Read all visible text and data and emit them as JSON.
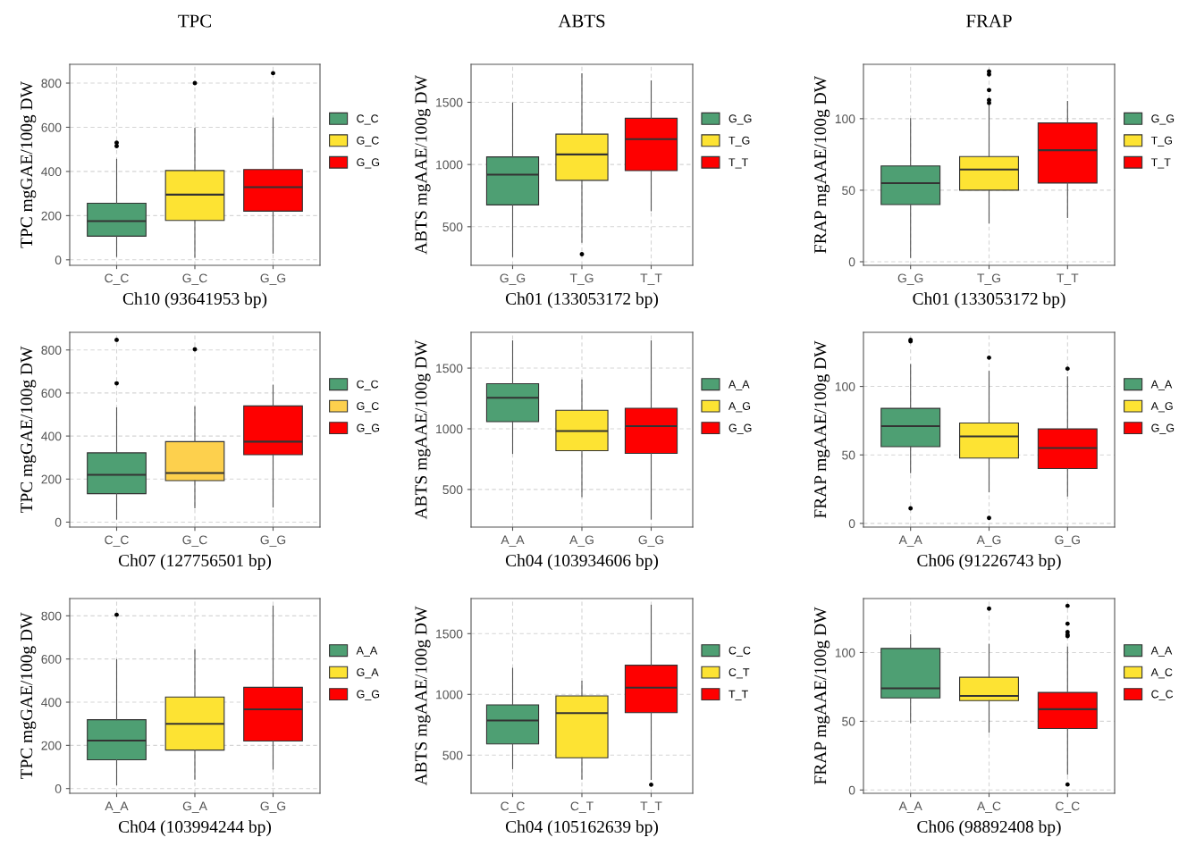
{
  "chart_data": [
    {
      "type": "box",
      "title": "TPC",
      "xlabel": "Ch10 (93641953 bp)",
      "ylabel": "TPC mgGAE/100g DW",
      "categories": [
        "C_C",
        "G_C",
        "G_G"
      ],
      "ylim": [
        -25,
        885
      ],
      "yticks": [
        0,
        200,
        400,
        600,
        800
      ],
      "grid": true,
      "legend": "right",
      "series": [
        {
          "name": "C_C",
          "color": "#4e9f73",
          "boxes": [
            {
              "low": 15,
              "q1": 107,
              "median": 175,
              "q3": 256,
              "high": 455,
              "outliers": [
                515,
                530
              ]
            },
            null,
            null
          ]
        },
        {
          "name": "G_C",
          "color": "#fde333",
          "boxes": [
            null,
            {
              "low": 12,
              "q1": 178,
              "median": 295,
              "q3": 404,
              "high": 596,
              "outliers": [
                800
              ]
            },
            null
          ]
        },
        {
          "name": "G_G",
          "color": "#fe0000",
          "boxes": [
            null,
            null,
            {
              "low": 30,
              "q1": 220,
              "median": 329,
              "q3": 409,
              "high": 642,
              "outliers": [
                845
              ]
            }
          ]
        }
      ]
    },
    {
      "type": "box",
      "title": "ABTS",
      "xlabel": "Ch01 (133053172 bp)",
      "ylabel": "ABTS mgAAE/100g DW",
      "categories": [
        "G_G",
        "T_G",
        "T_T"
      ],
      "ylim": [
        190,
        1805
      ],
      "yticks": [
        500,
        1000,
        1500
      ],
      "grid": true,
      "legend": "right",
      "series": [
        {
          "name": "G_G",
          "color": "#4e9f73",
          "boxes": [
            {
              "low": 260,
              "q1": 675,
              "median": 918,
              "q3": 1061,
              "high": 1494
            },
            null,
            null
          ]
        },
        {
          "name": "T_G",
          "color": "#fde333",
          "boxes": [
            null,
            {
              "low": 375,
              "q1": 873,
              "median": 1081,
              "q3": 1244,
              "high": 1730,
              "outliers": [
                280
              ]
            },
            null
          ]
        },
        {
          "name": "T_T",
          "color": "#fe0000",
          "boxes": [
            null,
            null,
            {
              "low": 628,
              "q1": 951,
              "median": 1204,
              "q3": 1372,
              "high": 1672
            }
          ]
        }
      ]
    },
    {
      "type": "box",
      "title": "FRAP",
      "xlabel": "Ch01 (133053172 bp)",
      "ylabel": "FRAP mgAAE/100g DW",
      "categories": [
        "G_G",
        "T_G",
        "T_T"
      ],
      "ylim": [
        -2.5,
        138
      ],
      "yticks": [
        0,
        50,
        100
      ],
      "grid": true,
      "legend": "right",
      "series": [
        {
          "name": "G_G",
          "color": "#4e9f73",
          "boxes": [
            {
              "low": 3,
              "q1": 40,
              "median": 55,
              "q3": 67,
              "high": 100
            },
            null,
            null
          ]
        },
        {
          "name": "T_G",
          "color": "#fde333",
          "boxes": [
            null,
            {
              "low": 27,
              "q1": 50,
              "median": 64.5,
              "q3": 73.5,
              "high": 109,
              "outliers": [
                111,
                113,
                120,
                131,
                133
              ]
            },
            null
          ]
        },
        {
          "name": "T_T",
          "color": "#fe0000",
          "boxes": [
            null,
            null,
            {
              "low": 31,
              "q1": 55,
              "median": 78,
              "q3": 97,
              "high": 112
            }
          ]
        }
      ]
    },
    {
      "type": "box",
      "xlabel": "Ch07 (127756501 bp)",
      "ylabel": "TPC mgGAE/100g DW",
      "categories": [
        "C_C",
        "G_C",
        "G_G"
      ],
      "ylim": [
        -23,
        882
      ],
      "yticks": [
        0,
        200,
        400,
        600,
        800
      ],
      "grid": true,
      "legend": "right",
      "series": [
        {
          "name": "C_C",
          "color": "#4e9f73",
          "boxes": [
            {
              "low": 14,
              "q1": 132,
              "median": 220,
              "q3": 322,
              "high": 531,
              "outliers": [
                645,
                847
              ]
            },
            null,
            null
          ]
        },
        {
          "name": "G_C",
          "color": "#fdd04d",
          "boxes": [
            null,
            {
              "low": 67,
              "q1": 193,
              "median": 228,
              "q3": 374,
              "high": 536,
              "outliers": [
                803
              ]
            },
            null
          ]
        },
        {
          "name": "G_G",
          "color": "#fe0000",
          "boxes": [
            null,
            null,
            {
              "low": 70,
              "q1": 313,
              "median": 374,
              "q3": 540,
              "high": 636
            }
          ]
        }
      ]
    },
    {
      "type": "box",
      "xlabel": "Ch04 (103934606 bp)",
      "ylabel": "ABTS mgAAE/100g DW",
      "categories": [
        "A_A",
        "A_G",
        "G_G"
      ],
      "ylim": [
        190,
        1795
      ],
      "yticks": [
        500,
        1000,
        1500
      ],
      "grid": true,
      "legend": "right",
      "series": [
        {
          "name": "A_A",
          "color": "#4e9f73",
          "boxes": [
            {
              "low": 797,
              "q1": 1059,
              "median": 1256,
              "q3": 1372,
              "high": 1725
            },
            null,
            null
          ]
        },
        {
          "name": "A_G",
          "color": "#fde333",
          "boxes": [
            null,
            {
              "low": 440,
              "q1": 819,
              "median": 981,
              "q3": 1153,
              "high": 1403
            },
            null
          ]
        },
        {
          "name": "G_G",
          "color": "#fe0000",
          "boxes": [
            null,
            null,
            {
              "low": 256,
              "q1": 797,
              "median": 1022,
              "q3": 1169,
              "high": 1725
            }
          ]
        }
      ]
    },
    {
      "type": "box",
      "xlabel": "Ch06 (91226743 bp)",
      "ylabel": "FRAP mgAAE/100g DW",
      "categories": [
        "A_A",
        "A_G",
        "G_G"
      ],
      "ylim": [
        -2.7,
        139.5
      ],
      "yticks": [
        0,
        50,
        100
      ],
      "grid": true,
      "legend": "right",
      "series": [
        {
          "name": "A_A",
          "color": "#4e9f73",
          "boxes": [
            {
              "low": 37,
              "q1": 56,
              "median": 71,
              "q3": 84,
              "high": 116,
              "outliers": [
                11,
                133,
                134
              ]
            },
            null,
            null
          ]
        },
        {
          "name": "A_G",
          "color": "#fde333",
          "boxes": [
            null,
            {
              "low": 23,
              "q1": 47.7,
              "median": 63.5,
              "q3": 73.3,
              "high": 111,
              "outliers": [
                4,
                121
              ]
            },
            null
          ]
        },
        {
          "name": "G_G",
          "color": "#fe0000",
          "boxes": [
            null,
            null,
            {
              "low": 20,
              "q1": 40,
              "median": 55,
              "q3": 69,
              "high": 107,
              "outliers": [
                113
              ]
            }
          ]
        }
      ]
    },
    {
      "type": "box",
      "xlabel": "Ch04 (103994244 bp)",
      "ylabel": "TPC mgGAE/100g DW",
      "categories": [
        "A_A",
        "G_A",
        "G_G"
      ],
      "ylim": [
        -22,
        880
      ],
      "yticks": [
        0,
        200,
        400,
        600,
        800
      ],
      "grid": true,
      "legend": "right",
      "series": [
        {
          "name": "A_A",
          "color": "#4e9f73",
          "boxes": [
            {
              "low": 17,
              "q1": 133,
              "median": 222,
              "q3": 319,
              "high": 597,
              "outliers": [
                805
              ]
            },
            null,
            null
          ]
        },
        {
          "name": "G_A",
          "color": "#fde333",
          "boxes": [
            null,
            {
              "low": 43,
              "q1": 178,
              "median": 300,
              "q3": 424,
              "high": 644
            },
            null
          ]
        },
        {
          "name": "G_G",
          "color": "#fe0000",
          "boxes": [
            null,
            null,
            {
              "low": 90,
              "q1": 220,
              "median": 367,
              "q3": 469,
              "high": 845
            }
          ]
        }
      ]
    },
    {
      "type": "box",
      "xlabel": "Ch04 (105162639 bp)",
      "ylabel": "ABTS mgAAE/100g DW",
      "categories": [
        "C_C",
        "C_T",
        "T_T"
      ],
      "ylim": [
        186,
        1789
      ],
      "yticks": [
        500,
        1000,
        1500
      ],
      "grid": true,
      "legend": "right",
      "series": [
        {
          "name": "C_C",
          "color": "#4e9f73",
          "boxes": [
            {
              "low": 389,
              "q1": 592,
              "median": 785,
              "q3": 914,
              "high": 1215
            },
            null,
            null
          ]
        },
        {
          "name": "C_T",
          "color": "#fde333",
          "boxes": [
            null,
            {
              "low": 303,
              "q1": 478,
              "median": 846,
              "q3": 988,
              "high": 1108
            },
            null
          ]
        },
        {
          "name": "T_T",
          "color": "#fe0000",
          "boxes": [
            null,
            null,
            {
              "low": 300,
              "q1": 850,
              "median": 1055,
              "q3": 1240,
              "high": 1734,
              "outliers": [
                257
              ]
            }
          ]
        }
      ]
    },
    {
      "type": "box",
      "xlabel": "Ch06 (98892408 bp)",
      "ylabel": "FRAP mgAAE/100g DW",
      "categories": [
        "A_A",
        "A_C",
        "C_C"
      ],
      "ylim": [
        -2.4,
        139.3
      ],
      "yticks": [
        0,
        50,
        100
      ],
      "grid": true,
      "legend": "right",
      "series": [
        {
          "name": "A_A",
          "color": "#4e9f73",
          "boxes": [
            {
              "low": 49,
              "q1": 67,
              "median": 74,
              "q3": 103,
              "high": 113
            },
            null,
            null
          ]
        },
        {
          "name": "A_C",
          "color": "#fde333",
          "boxes": [
            null,
            {
              "low": 42,
              "q1": 65,
              "median": 68.5,
              "q3": 82,
              "high": 106,
              "outliers": [
                132
              ]
            },
            null
          ]
        },
        {
          "name": "C_C",
          "color": "#fe0000",
          "boxes": [
            null,
            null,
            {
              "low": 11.5,
              "q1": 44.7,
              "median": 58.8,
              "q3": 71,
              "high": 104,
              "outliers": [
                4,
                112,
                113,
                115,
                121,
                134
              ]
            }
          ]
        }
      ]
    }
  ]
}
